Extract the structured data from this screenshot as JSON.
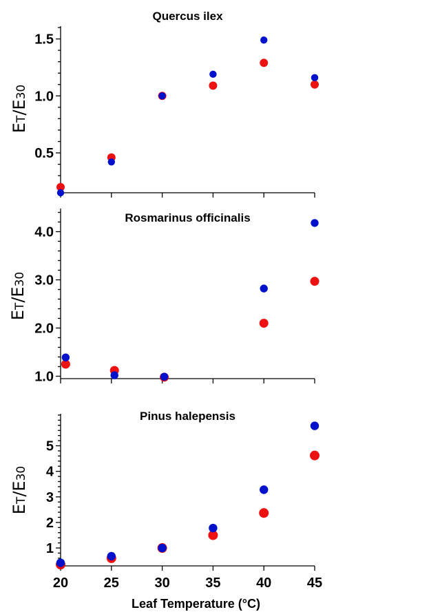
{
  "chart_data": [
    {
      "type": "scatter",
      "title": "Quercus ilex",
      "ylabel": {
        "main": "E",
        "sub_t": "T",
        "slash": "/E",
        "sub_30": "30"
      },
      "xlim": [
        20,
        45
      ],
      "ylim": [
        0.15,
        1.6
      ],
      "yticks": [
        0.5,
        1.0,
        1.5
      ],
      "ytick_labels": [
        "0.5",
        "1.0",
        "1.5"
      ],
      "xticks": [
        20,
        25,
        30,
        35,
        40,
        45
      ],
      "series": [
        {
          "color": "#ee1111",
          "x": [
            20,
            25,
            30,
            35,
            40,
            45
          ],
          "y": [
            0.2,
            0.46,
            1.0,
            1.09,
            1.29,
            1.1
          ]
        },
        {
          "color": "#0011cc",
          "x": [
            20,
            25,
            30,
            35,
            40,
            45
          ],
          "y": [
            0.15,
            0.42,
            1.0,
            1.19,
            1.49,
            1.16
          ]
        }
      ]
    },
    {
      "type": "scatter",
      "title": "Rosmarinus officinalis",
      "ylabel": {
        "main": "E",
        "sub_t": "T",
        "slash": "/E",
        "sub_30": "30"
      },
      "xlim": [
        20,
        45
      ],
      "ylim": [
        0.95,
        4.45
      ],
      "yticks": [
        1.0,
        2.0,
        3.0,
        4.0
      ],
      "ytick_labels": [
        "1.0",
        "2.0",
        "3.0",
        "4.0"
      ],
      "xticks": [
        20,
        25,
        30,
        35,
        40,
        45
      ],
      "series": [
        {
          "color": "#ee1111",
          "x": [
            20.5,
            25.3,
            30.2,
            40,
            45
          ],
          "y": [
            1.25,
            1.12,
            0.98,
            2.1,
            2.97
          ]
        },
        {
          "color": "#0011cc",
          "x": [
            20.5,
            25.3,
            30.2,
            40,
            45
          ],
          "y": [
            1.39,
            1.02,
            0.99,
            2.82,
            4.18
          ]
        }
      ]
    },
    {
      "type": "scatter",
      "title": "Pinus halepensis",
      "ylabel": {
        "main": "E",
        "sub_t": "T",
        "slash": "/E",
        "sub_30": "30"
      },
      "xlabel": "Leaf Temperature (°C)",
      "xlim": [
        20,
        45
      ],
      "ylim": [
        0.3,
        6.2
      ],
      "yticks": [
        1,
        2,
        3,
        4,
        5
      ],
      "ytick_labels": [
        "1",
        "2",
        "3",
        "4",
        "5"
      ],
      "xticks": [
        20,
        25,
        30,
        35,
        40,
        45
      ],
      "xtick_labels": [
        "20",
        "25",
        "30",
        "35",
        "40",
        "45"
      ],
      "series": [
        {
          "color": "#ee1111",
          "x": [
            20,
            25,
            30,
            35,
            40,
            45
          ],
          "y": [
            0.35,
            0.6,
            1.0,
            1.5,
            2.37,
            4.62
          ]
        },
        {
          "color": "#0011cc",
          "x": [
            20,
            25,
            30,
            35,
            40,
            45
          ],
          "y": [
            0.42,
            0.68,
            1.0,
            1.78,
            3.28,
            5.78
          ]
        }
      ]
    }
  ]
}
